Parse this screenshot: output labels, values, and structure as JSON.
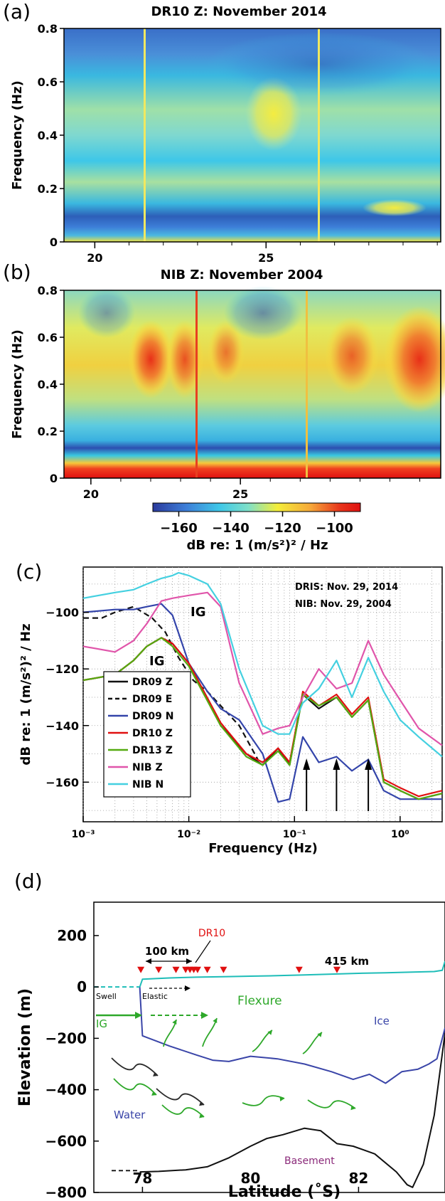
{
  "panels": {
    "a": {
      "letter": "(a)",
      "title": "DR10  Z:  November  2014"
    },
    "b": {
      "letter": "(b)",
      "title": "NIB  Z:  November  2004"
    },
    "c": {
      "letter": "(c)"
    },
    "d": {
      "letter": "(d)"
    }
  },
  "chart_data": [
    {
      "type": "heatmap",
      "id": "a",
      "title": "DR10  Z:  November  2014",
      "ylabel": "Frequency  (Hz)",
      "xlabel": "",
      "x_ticks": [
        "20",
        "25"
      ],
      "x_tick_values": [
        20,
        25
      ],
      "xlim": [
        19.1,
        30.1
      ],
      "y_ticks": [
        "0",
        "0.2",
        "0.4",
        "0.6",
        "0.8"
      ],
      "y_tick_values": [
        0,
        0.2,
        0.4,
        0.6,
        0.8
      ],
      "ylim": [
        0,
        0.8
      ],
      "features": [
        {
          "day": 21.5,
          "kind": "vertical spike"
        },
        {
          "day": 26.6,
          "kind": "vertical spike"
        },
        {
          "day_range": [
            25.4,
            25.9
          ],
          "freq_range": [
            0.38,
            0.56
          ],
          "level_dB": -120
        },
        {
          "day_range": [
            28.5,
            29.8
          ],
          "freq_range": [
            0.11,
            0.15
          ],
          "level_dB": -120
        }
      ]
    },
    {
      "type": "heatmap",
      "id": "b",
      "title": "NIB  Z:  November  2004",
      "ylabel": "Frequency  (Hz)",
      "xlabel": "",
      "x_ticks": [
        "20",
        "25"
      ],
      "x_tick_values": [
        20,
        25
      ],
      "xlim": [
        19.1,
        31.7
      ],
      "y_ticks": [
        "0",
        "0.2",
        "0.4",
        "0.6",
        "0.8"
      ],
      "y_tick_values": [
        0,
        0.2,
        0.4,
        0.6,
        0.8
      ],
      "ylim": [
        0,
        0.8
      ],
      "colorbar": {
        "ticks": [
          "−160",
          "−140",
          "−120",
          "−100"
        ],
        "tick_values": [
          -160,
          -140,
          -120,
          -100
        ],
        "range": [
          -170,
          -90
        ],
        "label": "dB re: 1 (m/s²)² / Hz",
        "colors": [
          "#2b3a9c",
          "#3d7ed8",
          "#3ec7e8",
          "#7fe0c8",
          "#f4ee3a",
          "#f6a83a",
          "#e8361c",
          "#e01010"
        ]
      },
      "features": [
        {
          "day": 23.0,
          "kind": "vertical spike"
        },
        {
          "day": 27.0,
          "kind": "vertical spike"
        },
        {
          "day_range": [
            21.2,
            21.8
          ],
          "freq_range": [
            0.32,
            0.56
          ],
          "level_dB": -100
        },
        {
          "day_range": [
            30.2,
            31.7
          ],
          "freq_range": [
            0.3,
            0.62
          ],
          "level_dB": -100
        }
      ]
    },
    {
      "type": "line",
      "id": "c",
      "xlabel": "Frequency  (Hz)",
      "ylabel": "dB  re: 1 (m/s²)² / Hz",
      "xscale": "log",
      "xlim": [
        0.001,
        2.5
      ],
      "ylim": [
        -174,
        -84
      ],
      "x_ticks": [
        "10⁻³",
        "10⁻²",
        "10⁻¹",
        "10⁰"
      ],
      "x_tick_values": [
        0.001,
        0.01,
        0.1,
        1
      ],
      "y_ticks": [
        "−100",
        "−120",
        "−140",
        "−160"
      ],
      "y_tick_values": [
        -100,
        -120,
        -140,
        -160
      ],
      "grid": true,
      "legend_position": "bottom-left",
      "annotations": [
        "DRIS:  Nov. 29, 2014",
        "NIB:    Nov. 29, 2004",
        "IG",
        "IG"
      ],
      "arrows_at_hz": [
        0.13,
        0.25,
        0.5
      ],
      "series": [
        {
          "name": "DR09 Z",
          "color": "#111111",
          "dash": false,
          "x": [
            0.001,
            0.002,
            0.003,
            0.004,
            0.0055,
            0.007,
            0.01,
            0.02,
            0.035,
            0.05,
            0.07,
            0.09,
            0.12,
            0.17,
            0.25,
            0.35,
            0.5,
            0.7,
            1.0,
            1.5,
            2.5
          ],
          "y": [
            -124,
            -122,
            -117,
            -112,
            -109,
            -111,
            -118,
            -140,
            -150,
            -154,
            -148,
            -154,
            -129,
            -134,
            -130,
            -137,
            -131,
            -160,
            -163,
            -166,
            -164
          ]
        },
        {
          "name": "DR09 E",
          "color": "#111111",
          "dash": true,
          "x": [
            0.001,
            0.0015,
            0.002,
            0.003,
            0.0045,
            0.006,
            0.008,
            0.011,
            0.015,
            0.02,
            0.03,
            0.045
          ],
          "y": [
            -102,
            -102,
            -100,
            -98,
            -102,
            -107,
            -116,
            -124,
            -128,
            -133,
            -140,
            -152
          ]
        },
        {
          "name": "DR09 N",
          "color": "#3344aa",
          "dash": false,
          "x": [
            0.001,
            0.002,
            0.003,
            0.004,
            0.0055,
            0.007,
            0.01,
            0.015,
            0.02,
            0.03,
            0.05,
            0.07,
            0.09,
            0.12,
            0.17,
            0.25,
            0.35,
            0.5,
            0.7,
            1.0,
            1.5,
            2.5
          ],
          "y": [
            -100,
            -99,
            -99,
            -98,
            -97,
            -101,
            -118,
            -128,
            -134,
            -138,
            -150,
            -167,
            -166,
            -144,
            -153,
            -151,
            -156,
            -152,
            -163,
            -166,
            -166,
            -166
          ]
        },
        {
          "name": "DR10 Z",
          "color": "#e01010",
          "dash": false,
          "x": [
            0.001,
            0.002,
            0.003,
            0.004,
            0.0055,
            0.007,
            0.01,
            0.02,
            0.035,
            0.05,
            0.07,
            0.09,
            0.12,
            0.17,
            0.25,
            0.35,
            0.5,
            0.7,
            1.0,
            1.5,
            2.5
          ],
          "y": [
            -124,
            -122,
            -117,
            -112,
            -109,
            -111,
            -118,
            -139,
            -150,
            -153,
            -148,
            -153,
            -128,
            -133,
            -129,
            -136,
            -130,
            -159,
            -162,
            -165,
            -163
          ]
        },
        {
          "name": "DR13 Z",
          "color": "#55aa10",
          "dash": false,
          "x": [
            0.001,
            0.002,
            0.003,
            0.004,
            0.0055,
            0.007,
            0.01,
            0.02,
            0.035,
            0.05,
            0.07,
            0.09,
            0.12,
            0.17,
            0.25,
            0.35,
            0.5,
            0.7,
            1.0,
            1.5,
            2.5
          ],
          "y": [
            -124,
            -122,
            -117,
            -112,
            -109,
            -112,
            -119,
            -140,
            -151,
            -154,
            -149,
            -154,
            -129,
            -133,
            -130,
            -137,
            -131,
            -160,
            -163,
            -166,
            -164
          ]
        },
        {
          "name": "NIB  Z",
          "color": "#e055aa",
          "dash": false,
          "x": [
            0.001,
            0.002,
            0.003,
            0.004,
            0.0055,
            0.007,
            0.01,
            0.015,
            0.02,
            0.03,
            0.05,
            0.07,
            0.09,
            0.12,
            0.17,
            0.25,
            0.35,
            0.5,
            0.7,
            1.0,
            1.5,
            2.5
          ],
          "y": [
            -112,
            -114,
            -110,
            -104,
            -96,
            -95,
            -94,
            -93,
            -98,
            -125,
            -143,
            -141,
            -140,
            -130,
            -120,
            -127,
            -125,
            -110,
            -122,
            -131,
            -141,
            -147
          ]
        },
        {
          "name": "NIB  N",
          "color": "#44d0e0",
          "dash": false,
          "x": [
            0.001,
            0.002,
            0.003,
            0.004,
            0.0055,
            0.007,
            0.008,
            0.01,
            0.015,
            0.02,
            0.03,
            0.05,
            0.07,
            0.09,
            0.12,
            0.17,
            0.25,
            0.35,
            0.5,
            0.7,
            1.0,
            1.5,
            2.5
          ],
          "y": [
            -95,
            -93,
            -92,
            -90,
            -88,
            -87,
            -86,
            -87,
            -90,
            -97,
            -120,
            -140,
            -143,
            -143,
            -132,
            -127,
            -117,
            -130,
            -116,
            -128,
            -138,
            -144,
            -151
          ]
        }
      ]
    },
    {
      "type": "line",
      "id": "d",
      "xlabel": "Latitude  (˚S)",
      "ylabel": "Elevation  (m)",
      "xlim": [
        77.1,
        83.6
      ],
      "ylim": [
        -800,
        330
      ],
      "x_ticks": [
        "78",
        "80",
        "82"
      ],
      "x_tick_values": [
        78,
        80,
        82
      ],
      "y_ticks": [
        "200",
        "0",
        "−200",
        "−400",
        "−600",
        "−800"
      ],
      "y_tick_values": [
        200,
        0,
        -200,
        -400,
        -600,
        -800
      ],
      "annotations": [
        "DR10",
        "100 km",
        "415 km",
        "Swell",
        "Elastic",
        "Flexure",
        "IG",
        "Ice",
        "Water",
        "Basement"
      ],
      "stations_lat": [
        77.97,
        78.3,
        78.62,
        78.8,
        78.88,
        78.95,
        79.02,
        79.2,
        79.5,
        80.9,
        81.6
      ],
      "series": [
        {
          "name": "Ice surface",
          "color": "#1ebdb8",
          "x": [
            77.95,
            78.0,
            78.5,
            79.0,
            79.5,
            80.0,
            80.5,
            81.0,
            81.5,
            82.0,
            82.5,
            83.0,
            83.4,
            83.55,
            83.6
          ],
          "y": [
            0,
            30,
            35,
            38,
            40,
            42,
            44,
            47,
            50,
            53,
            55,
            58,
            60,
            65,
            100
          ]
        },
        {
          "name": "Ice base",
          "color": "#3a45a8",
          "x": [
            77.95,
            78.0,
            78.5,
            79.0,
            79.3,
            79.6,
            80.0,
            80.5,
            81.0,
            81.5,
            81.9,
            82.2,
            82.5,
            82.8,
            83.1,
            83.3,
            83.45,
            83.6
          ],
          "y": [
            0,
            -190,
            -230,
            -265,
            -285,
            -290,
            -270,
            -280,
            -300,
            -330,
            -360,
            -340,
            -375,
            -330,
            -320,
            -300,
            -280,
            -160
          ]
        },
        {
          "name": "Basement",
          "color": "#111111",
          "x": [
            77.95,
            78.3,
            78.8,
            79.2,
            79.6,
            80.0,
            80.3,
            80.6,
            81.0,
            81.3,
            81.6,
            81.9,
            82.3,
            82.7,
            82.9,
            83.0,
            83.2,
            83.4,
            83.6
          ],
          "y": [
            -720,
            -718,
            -712,
            -700,
            -665,
            -620,
            -590,
            -575,
            -550,
            -560,
            -610,
            -620,
            -650,
            -720,
            -770,
            -780,
            -690,
            -500,
            -180
          ]
        }
      ]
    }
  ]
}
